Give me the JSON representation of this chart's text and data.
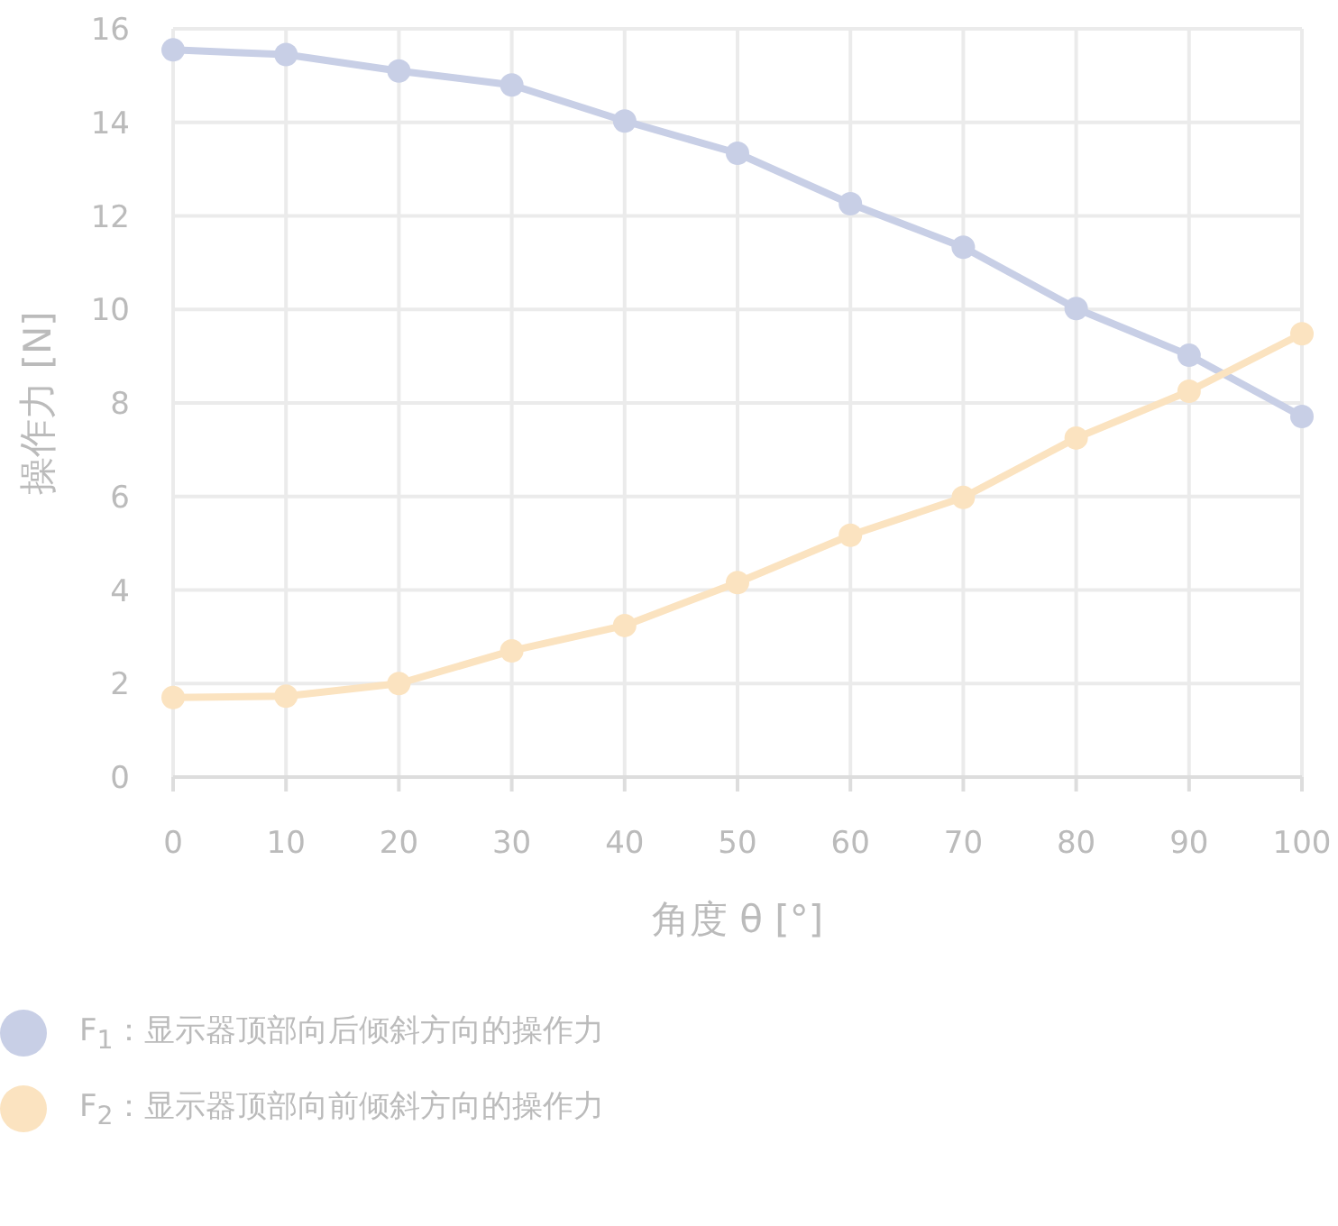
{
  "chart_data": {
    "type": "line",
    "xlabel": "角度 θ [°]",
    "ylabel": "操作力 [N]",
    "x": [
      0,
      10,
      20,
      30,
      40,
      50,
      60,
      70,
      80,
      90,
      100
    ],
    "series": [
      {
        "name": "F$_{1}$：显示器顶部向后倾斜方向的操作力",
        "color": "#c8cfe6",
        "values": [
          15.55,
          15.45,
          15.1,
          14.8,
          14.03,
          13.34,
          12.26,
          11.33,
          10.02,
          9.02,
          7.71
        ]
      },
      {
        "name": "F$_{2}$：显示器顶部向前倾斜方向的操作力",
        "color": "#fbe3c0",
        "values": [
          1.7,
          1.73,
          2.0,
          2.7,
          3.24,
          4.16,
          5.17,
          5.98,
          7.25,
          8.25,
          9.48
        ]
      }
    ],
    "xlim": [
      0,
      100
    ],
    "xticks": [
      0,
      10,
      20,
      30,
      40,
      50,
      60,
      70,
      80,
      90,
      100
    ],
    "ylim": [
      0,
      16
    ],
    "yticks": [
      0,
      2,
      4,
      6,
      8,
      10,
      12,
      14,
      16
    ],
    "grid": true,
    "legend": "bottom",
    "marker": "circle",
    "line_style": "solid"
  }
}
